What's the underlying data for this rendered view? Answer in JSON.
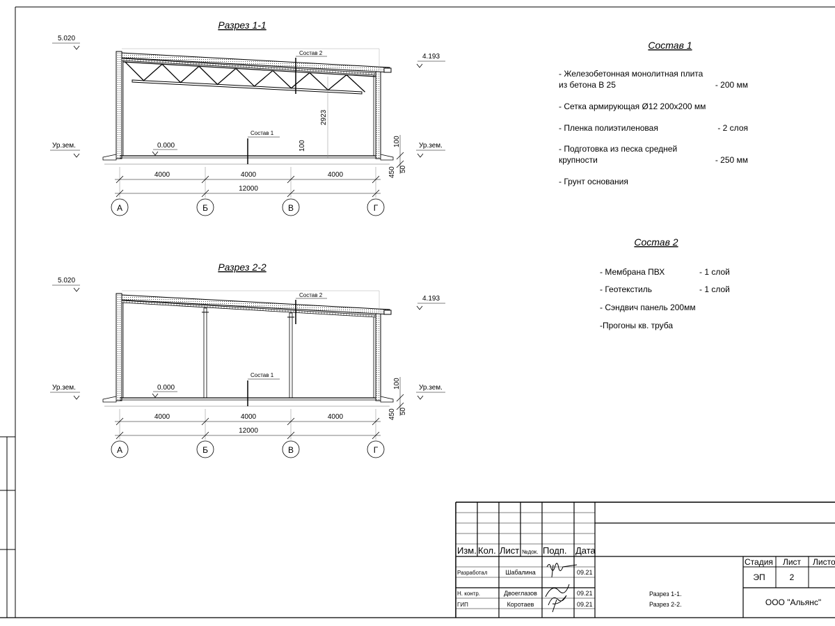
{
  "sections": [
    {
      "title": "Разрез 1-1",
      "elev_top_left": "5.020",
      "elev_top_right": "4.193",
      "elev_zero": "0.000",
      "ground_left": "Ур.зем.",
      "ground_right": "Ур.зем.",
      "sostav2_label": "Состав 2",
      "sostav1_label": "Состав 1",
      "height_dim": "2923",
      "floor_dim": "100",
      "right_dims": [
        "100",
        "450",
        "50"
      ],
      "span_dims": [
        "4000",
        "4000",
        "4000"
      ],
      "total_dim": "12000",
      "axes": [
        "А",
        "Б",
        "В",
        "Г"
      ],
      "has_truss": true
    },
    {
      "title": "Разрез 2-2",
      "elev_top_left": "5.020",
      "elev_top_right": "4.193",
      "elev_zero": "0.000",
      "ground_left": "Ур.зем.",
      "ground_right": "Ур.зем.",
      "sostav2_label": "Состав 2",
      "sostav1_label": "Состав 1",
      "right_dims": [
        "100",
        "450",
        "50"
      ],
      "span_dims": [
        "4000",
        "4000",
        "4000"
      ],
      "total_dim": "12000",
      "axes": [
        "А",
        "Б",
        "В",
        "Г"
      ],
      "has_truss": false
    }
  ],
  "sostav1": {
    "title": "Состав 1",
    "items": [
      {
        "text": "- Железобетонная  монолитная плита",
        "value": ""
      },
      {
        "text": "  из бетона В 25",
        "value": "- 200 мм"
      },
      {
        "text": "- Сетка армирующая Ø12 200х200 мм",
        "value": ""
      },
      {
        "text": "- Пленка полиэтиленовая",
        "value": "-  2 слоя"
      },
      {
        "text": "- Подготовка из песка средней",
        "value": ""
      },
      {
        "text": "  крупности",
        "value": "- 250 мм"
      },
      {
        "text": "- Грунт основания",
        "value": ""
      }
    ]
  },
  "sostav2": {
    "title": "Состав 2",
    "items": [
      {
        "text": "- Мембрана ПВХ",
        "value": "- 1 слой"
      },
      {
        "text": "- Геотекстиль",
        "value": "- 1 слой"
      },
      {
        "text": "- Сэндвич панель 200мм",
        "value": ""
      },
      {
        "text": "-Прогоны кв. труба",
        "value": ""
      }
    ]
  },
  "title_block": {
    "headers": [
      "Изм.",
      "Кол.",
      "Лист",
      "№док.",
      "Подп.",
      "Дата"
    ],
    "rows": [
      {
        "role": "Разработал",
        "name": "Шабалина",
        "date": "09.21"
      },
      {
        "role": "Н. контр.",
        "name": "Двоеглазов",
        "date": "09.21"
      },
      {
        "role": "ГИП",
        "name": "Коротаев",
        "date": "09.21"
      }
    ],
    "sheet_titles": [
      "Разрез 1-1.",
      "Разрез 2-2."
    ],
    "stage_header": "Стадия",
    "sheet_header": "Лист",
    "sheets_header": "Листо",
    "stage": "ЭП",
    "sheet": "2",
    "company": "ООО \"Альянс\""
  }
}
